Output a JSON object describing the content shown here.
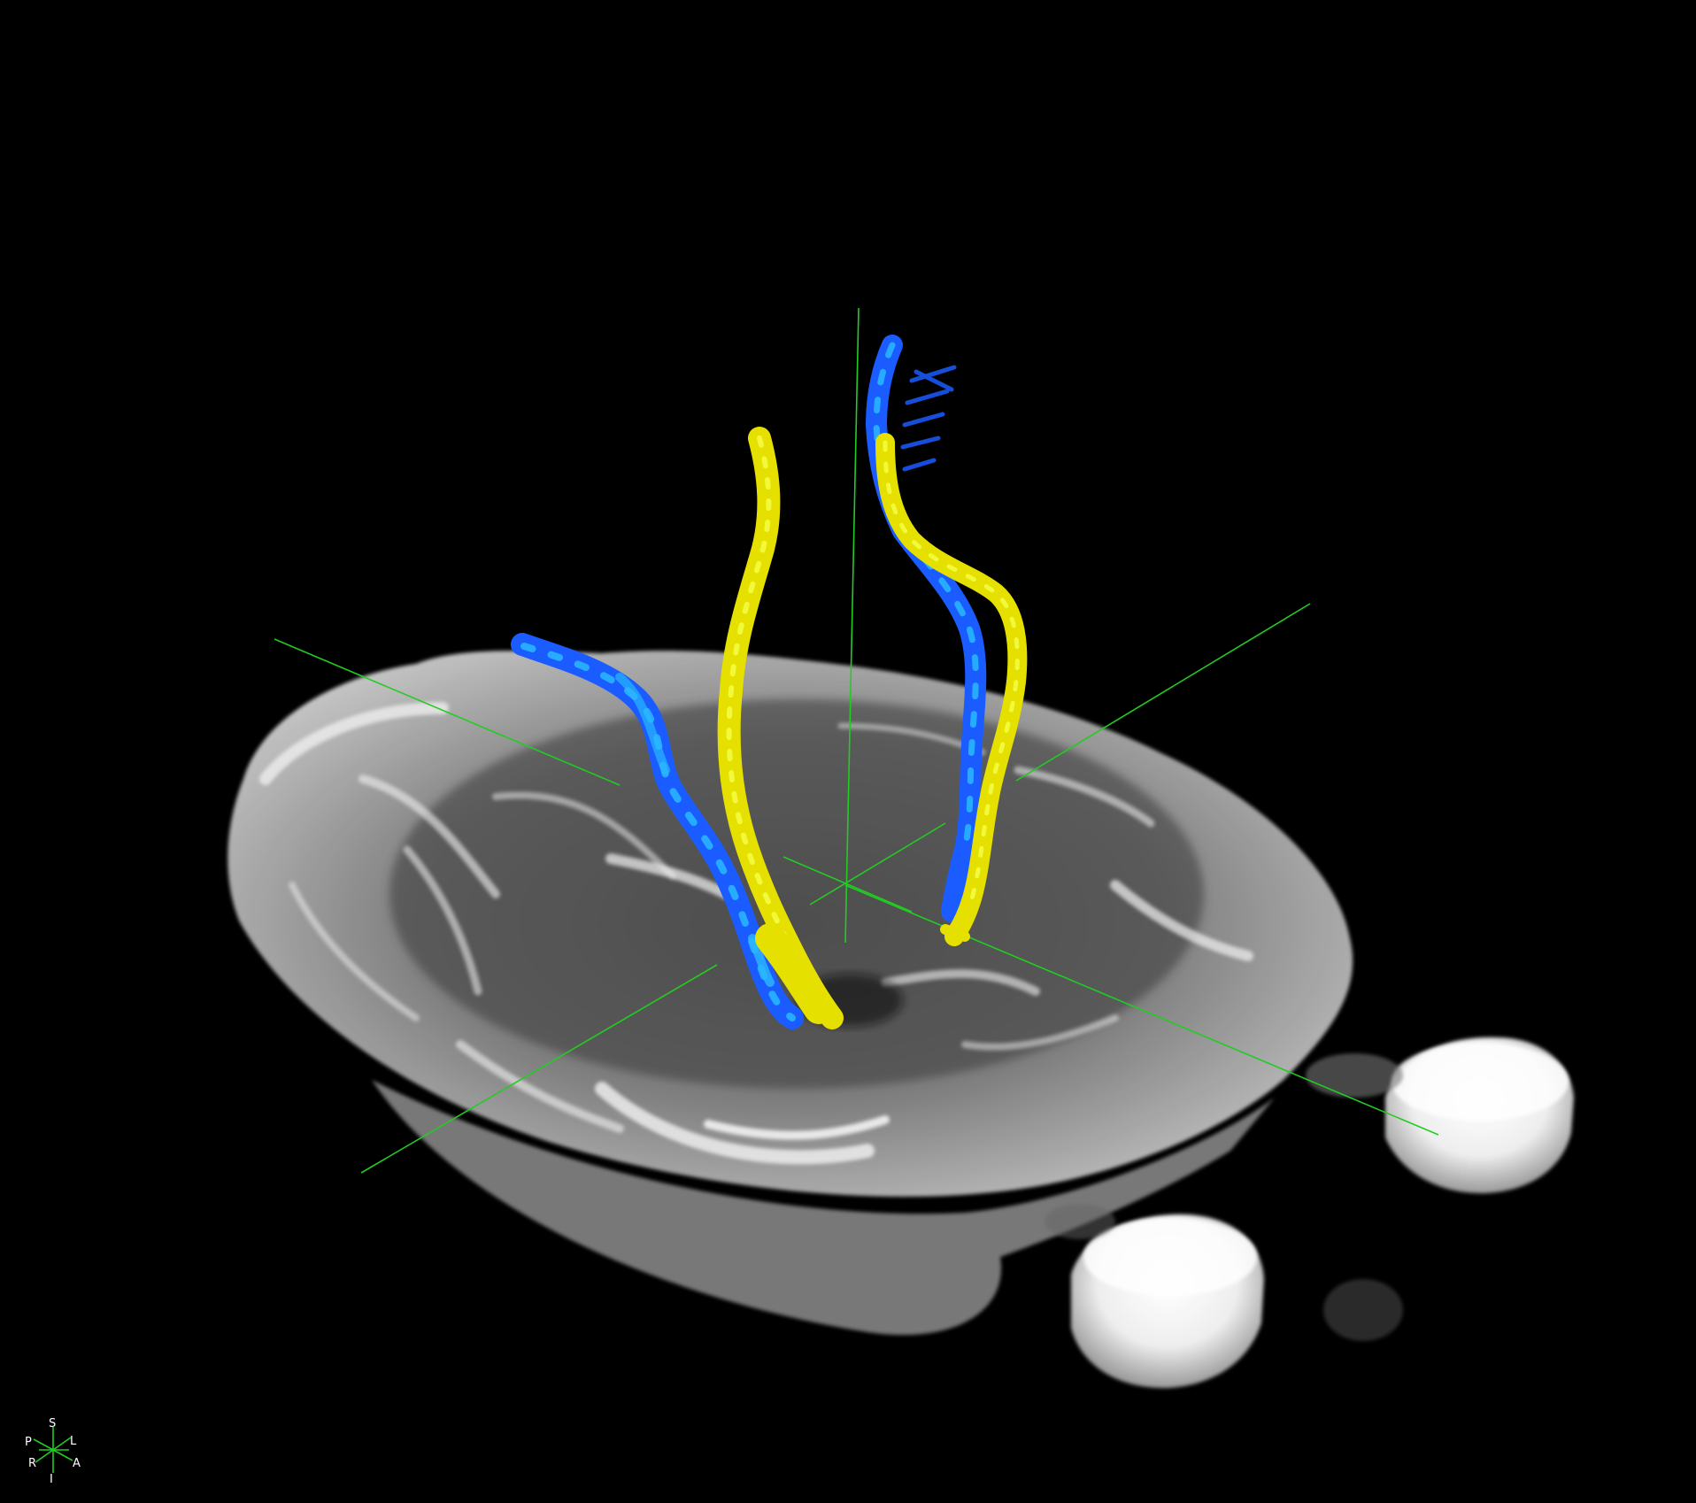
{
  "view": {
    "background_color": "#000000",
    "crosshair_color": "#22cc22",
    "tract_colors": {
      "blue": "#1a5cff",
      "cyan": "#2ab8ff",
      "yellow": "#e6e000"
    }
  },
  "orientation_marker": {
    "superior": "S",
    "inferior": "I",
    "left": "L",
    "right": "R",
    "anterior": "A",
    "posterior": "P"
  }
}
